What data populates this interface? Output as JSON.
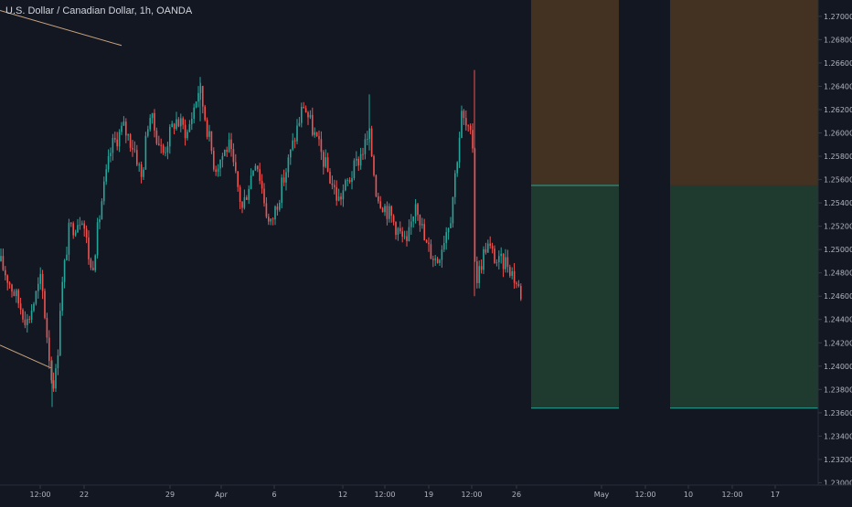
{
  "header": {
    "symbol_title": "U.S. Dollar / Canadian Dollar, 1h, OANDA"
  },
  "colors": {
    "background": "#131722",
    "up": "#26a69a",
    "down": "#ef5350",
    "axis_text": "#b2b5be",
    "stop_zone": "#433221",
    "target_zone": "#1f3a2e",
    "zone_line": "#26a69a",
    "trendline": "#c8a47e"
  },
  "chart_data": {
    "type": "candlestick",
    "title": "U.S. Dollar / Canadian Dollar, 1h, OANDA",
    "y_axis": {
      "ticks": [
        "1.27000",
        "1.26800",
        "1.26600",
        "1.26400",
        "1.26200",
        "1.26000",
        "1.25800",
        "1.25600",
        "1.25400",
        "1.25200",
        "1.25000",
        "1.24800",
        "1.24600",
        "1.24400",
        "1.24200",
        "1.24000",
        "1.23800",
        "1.23600",
        "1.23400",
        "1.23200",
        "1.23000"
      ],
      "ylim": [
        1.2298,
        1.2714
      ]
    },
    "x_axis": {
      "ticks": [
        "12:00",
        "22",
        "29",
        "Apr",
        "6",
        "12",
        "12:00",
        "19",
        "12:00",
        "26",
        "May",
        "12:00",
        "10",
        "12:00",
        "17"
      ]
    },
    "price_path": [
      [
        0,
        1.249
      ],
      [
        30,
        1.2438
      ],
      [
        45,
        1.2475
      ],
      [
        57,
        1.2385
      ],
      [
        62,
        1.2395
      ],
      [
        66,
        1.2455
      ],
      [
        75,
        1.2515
      ],
      [
        90,
        1.253
      ],
      [
        100,
        1.248
      ],
      [
        112,
        1.2545
      ],
      [
        122,
        1.2588
      ],
      [
        135,
        1.2605
      ],
      [
        148,
        1.2585
      ],
      [
        155,
        1.256
      ],
      [
        163,
        1.2618
      ],
      [
        178,
        1.2582
      ],
      [
        192,
        1.2612
      ],
      [
        205,
        1.26
      ],
      [
        218,
        1.264
      ],
      [
        235,
        1.257
      ],
      [
        250,
        1.259
      ],
      [
        265,
        1.2535
      ],
      [
        280,
        1.258
      ],
      [
        295,
        1.2518
      ],
      [
        312,
        1.2565
      ],
      [
        332,
        1.2625
      ],
      [
        350,
        1.2585
      ],
      [
        370,
        1.2542
      ],
      [
        385,
        1.2565
      ],
      [
        404,
        1.2598
      ],
      [
        412,
        1.2548
      ],
      [
        428,
        1.2528
      ],
      [
        445,
        1.2502
      ],
      [
        455,
        1.2545
      ],
      [
        465,
        1.2505
      ],
      [
        478,
        1.249
      ],
      [
        493,
        1.253
      ],
      [
        505,
        1.2615
      ],
      [
        517,
        1.259
      ],
      [
        520,
        1.247
      ],
      [
        532,
        1.2505
      ],
      [
        545,
        1.2488
      ],
      [
        555,
        1.249
      ],
      [
        571,
        1.246
      ]
    ],
    "spikes": [
      {
        "x": 57,
        "high": 1.2405,
        "low": 1.2365
      },
      {
        "x": 219,
        "high": 1.2648,
        "low": 1.261
      },
      {
        "x": 404,
        "high": 1.2633,
        "low": 1.2585
      },
      {
        "x": 519,
        "high": 1.2654,
        "low": 1.246
      }
    ],
    "position_zones": [
      {
        "name": "stop",
        "y_top": 1.2714,
        "y_bottom": 1.2555
      },
      {
        "name": "target",
        "y_top": 1.2555,
        "y_bottom": 1.2364
      }
    ],
    "trendlines": [
      {
        "from": [
          0,
          1.2705
        ],
        "to": [
          133,
          1.2675
        ]
      },
      {
        "from": [
          0,
          1.2418
        ],
        "to": [
          57,
          1.2398
        ]
      }
    ]
  }
}
